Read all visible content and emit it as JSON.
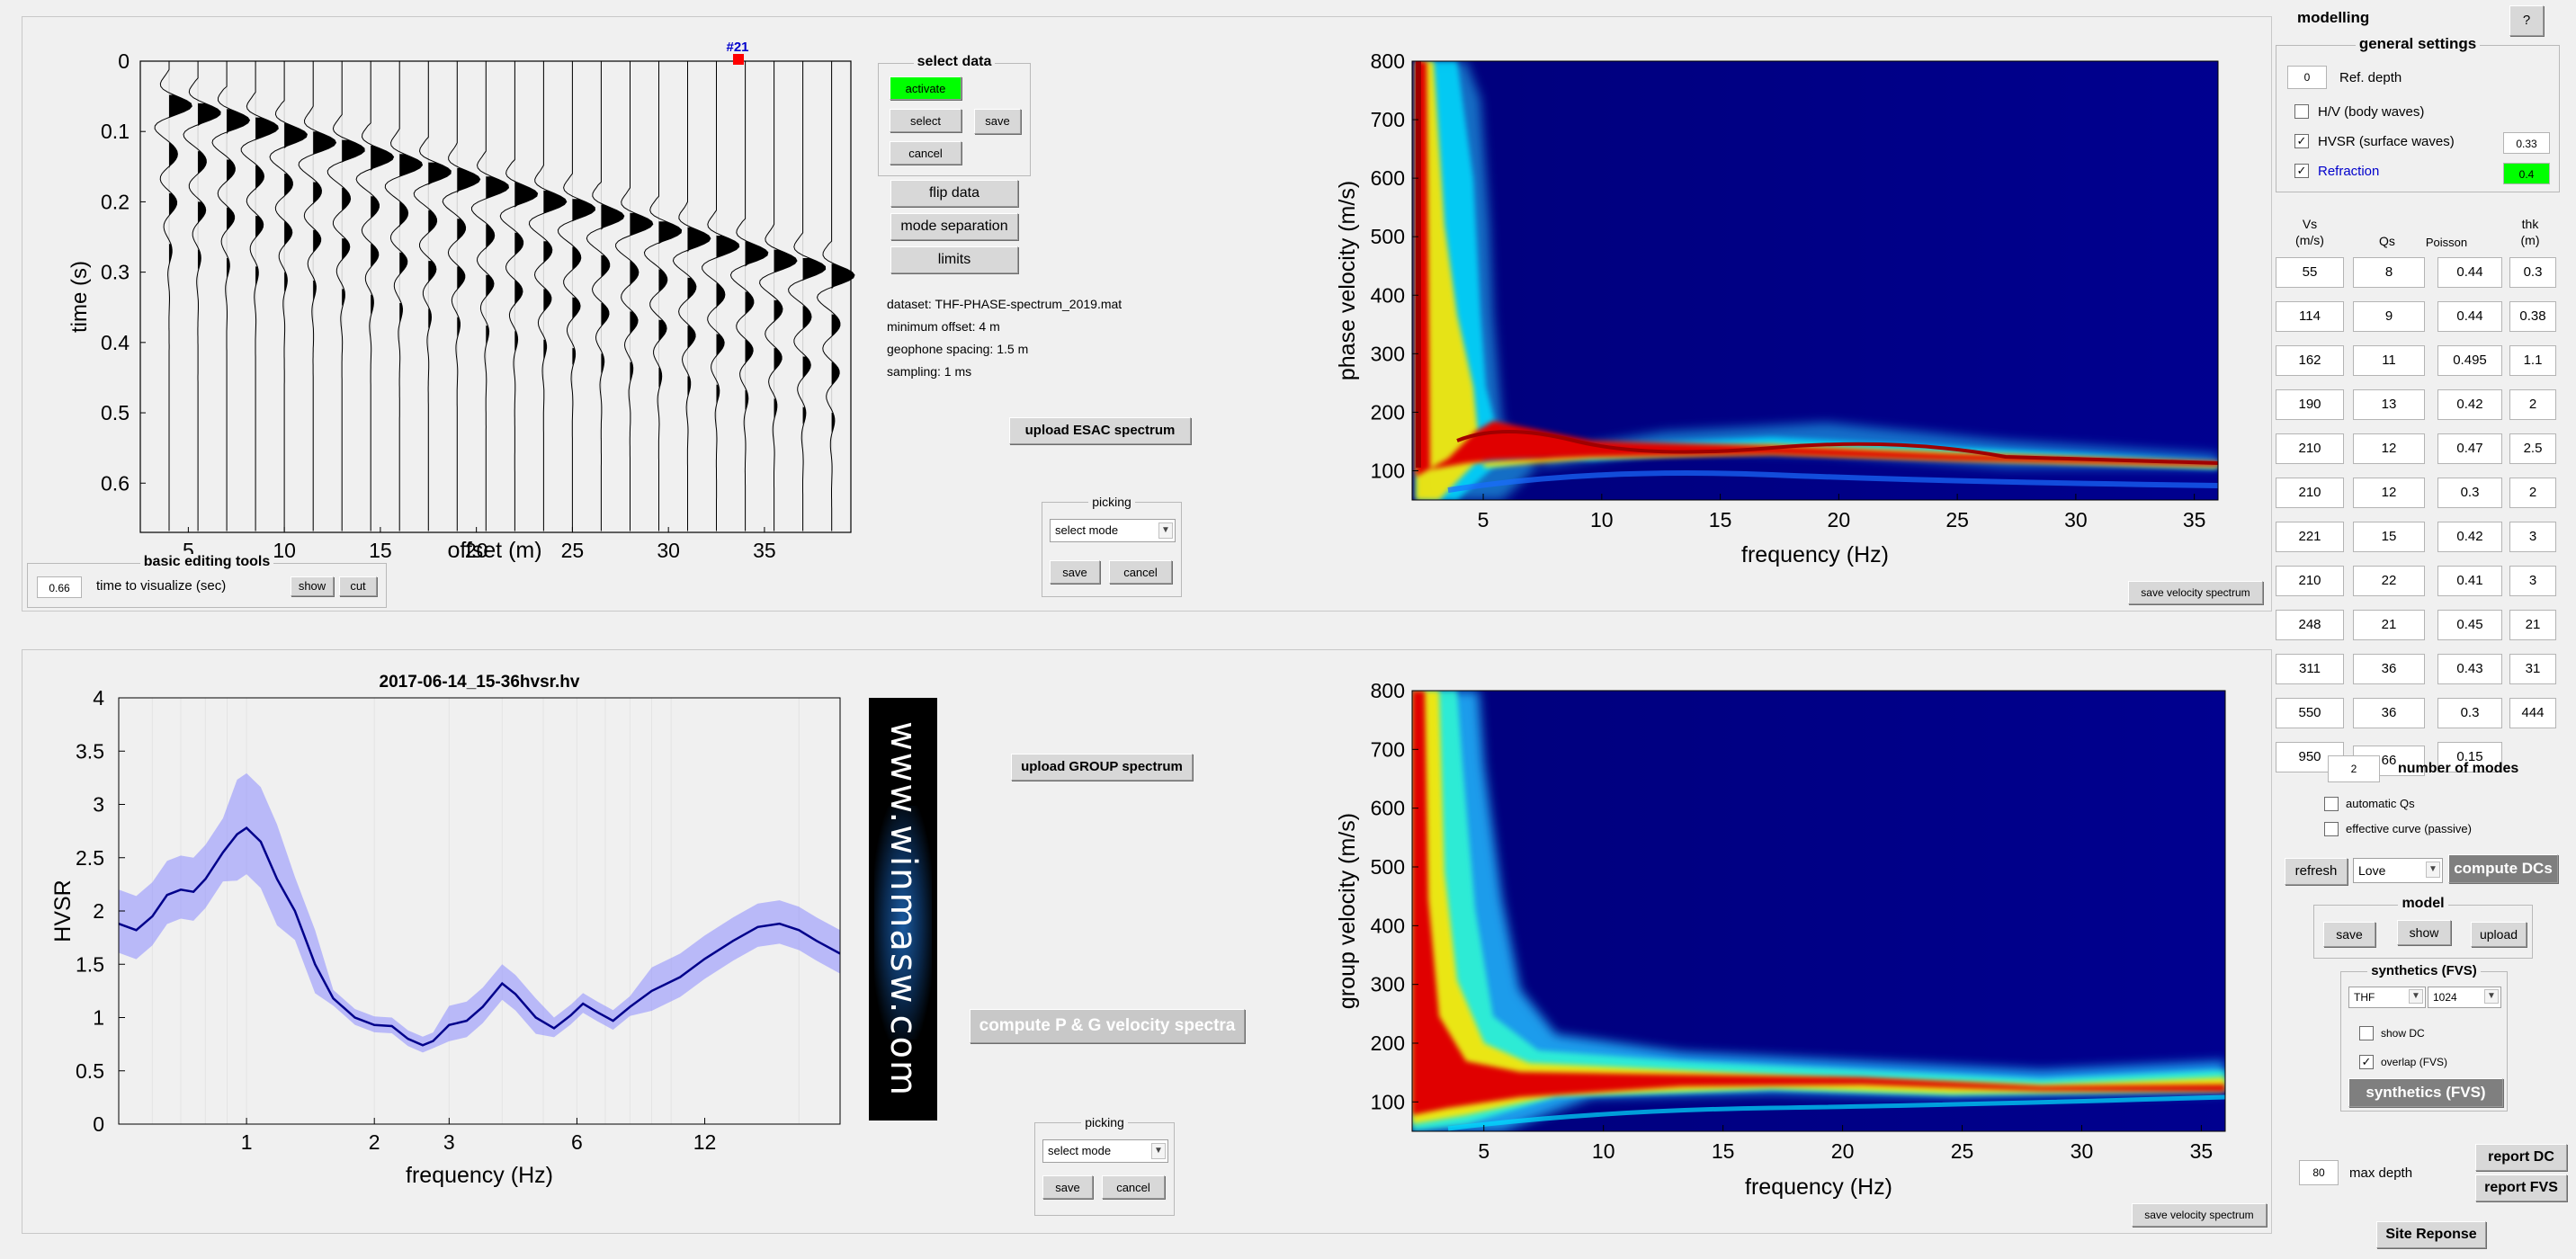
{
  "seismogram": {
    "trace_marker": "#21",
    "ylabel": "time (s)",
    "xlabel": "offset (m)",
    "yticks": [
      "0",
      "0.1",
      "0.2",
      "0.3",
      "0.4",
      "0.5",
      "0.6"
    ],
    "xticks": [
      "5",
      "10",
      "15",
      "20",
      "25",
      "30",
      "35"
    ]
  },
  "basic_editing": {
    "title": "basic editing tools",
    "time_value": "0.66",
    "time_label": "time to visualize (sec)",
    "show": "show",
    "cut": "cut"
  },
  "select_data": {
    "title": "select data",
    "activate": "activate",
    "select": "select",
    "save": "save",
    "cancel": "cancel"
  },
  "tools": {
    "flip": "flip data",
    "mode_sep": "mode separation",
    "limits": "limits"
  },
  "dataset_info": [
    "dataset: THF-PHASE-spectrum_2019.mat",
    "minimum offset: 4 m",
    "geophone spacing: 1.5 m",
    "sampling: 1 ms"
  ],
  "upload_esac": "upload ESAC spectrum",
  "picking_top": {
    "title": "picking",
    "mode": "select mode",
    "save": "save",
    "cancel": "cancel"
  },
  "phase_plot": {
    "ylabel": "phase velocity (m/s)",
    "xlabel": "frequency (Hz)",
    "yticks": [
      "100",
      "200",
      "300",
      "400",
      "500",
      "600",
      "700",
      "800"
    ],
    "xticks": [
      "5",
      "10",
      "15",
      "20",
      "25",
      "30",
      "35"
    ],
    "save_button": "save velocity spectrum"
  },
  "hvsr_plot": {
    "title": "2017-06-14_15-36hvsr.hv",
    "ylabel": "HVSR",
    "xlabel": "frequency (Hz)",
    "yticks": [
      "0",
      "0.5",
      "1",
      "1.5",
      "2",
      "2.5",
      "3",
      "3.5",
      "4"
    ],
    "xticks": [
      "1",
      "2",
      "3",
      "6",
      "12"
    ]
  },
  "watermark": "www.winmasw.com",
  "upload_group": "upload GROUP spectrum",
  "compute_pg": "compute P & G velocity spectra",
  "picking_bottom": {
    "title": "picking",
    "mode": "select mode",
    "save": "save",
    "cancel": "cancel"
  },
  "group_plot": {
    "ylabel": "group velocity (m/s)",
    "xlabel": "frequency (Hz)",
    "yticks": [
      "100",
      "200",
      "300",
      "400",
      "500",
      "600",
      "700",
      "800"
    ],
    "xticks": [
      "5",
      "10",
      "15",
      "20",
      "25",
      "30",
      "35"
    ],
    "save_button": "save velocity spectrum"
  },
  "modelling": {
    "title": "modelling",
    "help": "?",
    "general_title": "general settings",
    "ref_depth_value": "0",
    "ref_depth_label": "Ref. depth",
    "hv_body": "H/V (body waves)",
    "hvsr_surface": "HVSR (surface waves)",
    "hvsr_weight": "0.33",
    "refraction": "Refraction",
    "refraction_weight": "0.4",
    "headers": {
      "vs1": "Vs",
      "vs2": "(m/s)",
      "qs": "Qs",
      "poisson": "Poisson",
      "thk1": "thk",
      "thk2": "(m)"
    },
    "layers": [
      {
        "vs": "55",
        "qs": "8",
        "poisson": "0.44",
        "thk": "0.3"
      },
      {
        "vs": "114",
        "qs": "9",
        "poisson": "0.44",
        "thk": "0.38"
      },
      {
        "vs": "162",
        "qs": "11",
        "poisson": "0.495",
        "thk": "1.1"
      },
      {
        "vs": "190",
        "qs": "13",
        "poisson": "0.42",
        "thk": "2"
      },
      {
        "vs": "210",
        "qs": "12",
        "poisson": "0.47",
        "thk": "2.5"
      },
      {
        "vs": "210",
        "qs": "12",
        "poisson": "0.3",
        "thk": "2"
      },
      {
        "vs": "221",
        "qs": "15",
        "poisson": "0.42",
        "thk": "3"
      },
      {
        "vs": "210",
        "qs": "22",
        "poisson": "0.41",
        "thk": "3"
      },
      {
        "vs": "248",
        "qs": "21",
        "poisson": "0.45",
        "thk": "21"
      },
      {
        "vs": "311",
        "qs": "36",
        "poisson": "0.43",
        "thk": "31"
      },
      {
        "vs": "550",
        "qs": "36",
        "poisson": "0.3",
        "thk": "444"
      },
      {
        "vs": "950",
        "qs": "66",
        "poisson": "0.15",
        "thk": ""
      }
    ],
    "modes_value": "2",
    "modes_label": "number of modes",
    "auto_qs": "automatic Qs",
    "effective": "effective curve (passive)",
    "refresh": "refresh",
    "wave_type": "Love",
    "compute_dcs": "compute DCs",
    "model_title": "model",
    "model_save": "save",
    "model_show": "show",
    "model_upload": "upload",
    "synth_title": "synthetics (FVS)",
    "synth_site": "THF",
    "synth_n": "1024",
    "show_dc": "show DC",
    "overlap": "overlap (FVS)",
    "synth_button": "synthetics (FVS)",
    "max_depth_value": "80",
    "max_depth_label": "max depth",
    "report_dc": "report DC",
    "report_fvs": "report FVS",
    "site_response": "Site Reponse"
  },
  "colors": {
    "activate_green": "#00ff00",
    "refraction_blue": "#0000cc",
    "hvsr_line": "#00008b",
    "hvsr_band": "#8c8cff"
  }
}
